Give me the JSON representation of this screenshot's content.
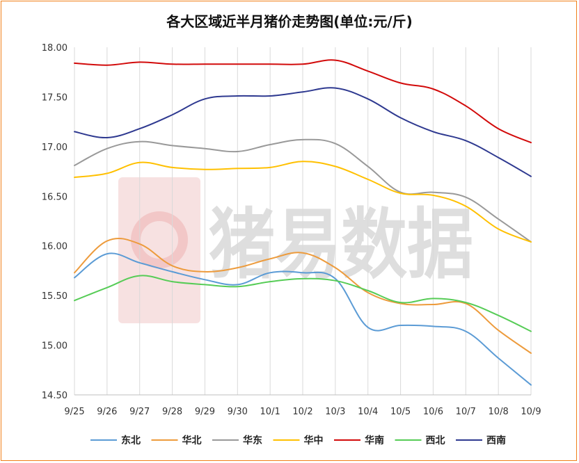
{
  "chart_data": {
    "type": "line",
    "title": "各大区域近半月猪价走势图(单位:元/斤)",
    "categories": [
      "9/25",
      "9/26",
      "9/27",
      "9/28",
      "9/29",
      "9/30",
      "10/1",
      "10/2",
      "10/3",
      "10/4",
      "10/5",
      "10/6",
      "10/7",
      "10/8",
      "10/9"
    ],
    "ylim": [
      14.5,
      18.0
    ],
    "yticks": [
      "14.50",
      "15.00",
      "15.50",
      "16.00",
      "16.50",
      "17.00",
      "17.50",
      "18.00"
    ],
    "grid": "vertical",
    "legend_position": "bottom",
    "watermark": "猪易数据",
    "series": [
      {
        "name": "东北",
        "color": "#5b9bd5",
        "values": [
          15.68,
          15.92,
          15.83,
          15.74,
          15.66,
          15.61,
          15.73,
          15.73,
          15.67,
          15.18,
          15.2,
          15.19,
          15.14,
          14.87,
          14.6
        ]
      },
      {
        "name": "华北",
        "color": "#ed9b3c",
        "values": [
          15.73,
          16.05,
          16.02,
          15.8,
          15.74,
          15.78,
          15.87,
          15.93,
          15.78,
          15.53,
          15.42,
          15.41,
          15.42,
          15.15,
          14.92
        ]
      },
      {
        "name": "华东",
        "color": "#999999",
        "values": [
          16.81,
          16.98,
          17.05,
          17.01,
          16.98,
          16.95,
          17.02,
          17.07,
          17.03,
          16.8,
          16.54,
          16.54,
          16.49,
          16.27,
          16.04
        ]
      },
      {
        "name": "华中",
        "color": "#ffc000",
        "values": [
          16.69,
          16.73,
          16.84,
          16.79,
          16.77,
          16.78,
          16.79,
          16.85,
          16.8,
          16.67,
          16.53,
          16.51,
          16.4,
          16.17,
          16.04
        ]
      },
      {
        "name": "华南",
        "color": "#d20a0a",
        "values": [
          17.84,
          17.82,
          17.85,
          17.83,
          17.83,
          17.83,
          17.83,
          17.83,
          17.87,
          17.76,
          17.64,
          17.58,
          17.41,
          17.18,
          17.04
        ]
      },
      {
        "name": "西北",
        "color": "#56cc56",
        "values": [
          15.45,
          15.58,
          15.7,
          15.64,
          15.61,
          15.59,
          15.64,
          15.67,
          15.65,
          15.55,
          15.43,
          15.47,
          15.43,
          15.3,
          15.14
        ]
      },
      {
        "name": "西南",
        "color": "#2e3990",
        "values": [
          17.15,
          17.09,
          17.18,
          17.32,
          17.48,
          17.51,
          17.51,
          17.55,
          17.59,
          17.48,
          17.29,
          17.15,
          17.06,
          16.89,
          16.7
        ]
      }
    ]
  }
}
